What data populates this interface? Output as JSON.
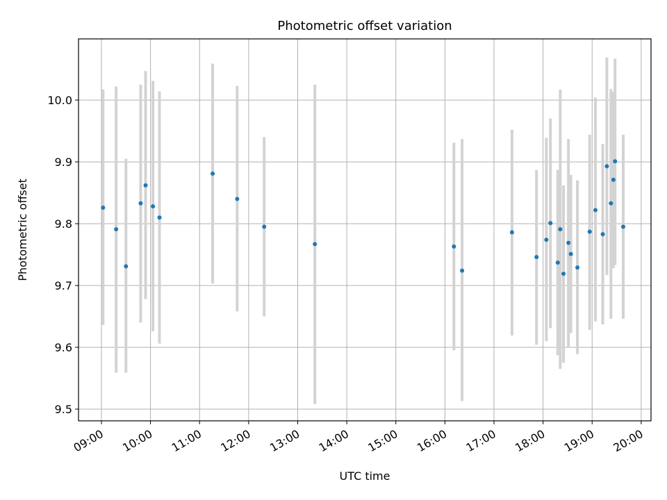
{
  "chart_data": {
    "type": "scatter",
    "title": "Photometric offset variation",
    "xlabel": "UTC time",
    "ylabel": "Photometric offset",
    "xlim": [
      "08:32",
      "20:12"
    ],
    "ylim": [
      9.481,
      10.099
    ],
    "xticks": [
      "09:00",
      "10:00",
      "11:00",
      "12:00",
      "13:00",
      "14:00",
      "15:00",
      "16:00",
      "17:00",
      "18:00",
      "19:00",
      "20:00"
    ],
    "yticks": [
      9.5,
      9.6,
      9.7,
      9.8,
      9.9,
      10.0
    ],
    "grid": true,
    "colors": {
      "points": "#1f77b4",
      "errorbars": "#d3d3d3",
      "grid": "#b0b0b0"
    },
    "series": [
      {
        "points": [
          {
            "x": "09:02",
            "y": 9.826,
            "ylow": 9.636,
            "yhigh": 10.017
          },
          {
            "x": "09:18",
            "y": 9.791,
            "ylow": 9.559,
            "yhigh": 10.022
          },
          {
            "x": "09:30",
            "y": 9.731,
            "ylow": 9.559,
            "yhigh": 9.905
          },
          {
            "x": "09:48",
            "y": 9.833,
            "ylow": 9.64,
            "yhigh": 10.025
          },
          {
            "x": "09:54",
            "y": 9.862,
            "ylow": 9.678,
            "yhigh": 10.047
          },
          {
            "x": "10:03",
            "y": 9.828,
            "ylow": 9.626,
            "yhigh": 10.031
          },
          {
            "x": "10:11",
            "y": 9.81,
            "ylow": 9.606,
            "yhigh": 10.014
          },
          {
            "x": "11:16",
            "y": 9.881,
            "ylow": 9.703,
            "yhigh": 10.059
          },
          {
            "x": "11:46",
            "y": 9.84,
            "ylow": 9.658,
            "yhigh": 10.023
          },
          {
            "x": "12:19",
            "y": 9.795,
            "ylow": 9.65,
            "yhigh": 9.94
          },
          {
            "x": "13:21",
            "y": 9.767,
            "ylow": 9.508,
            "yhigh": 10.025
          },
          {
            "x": "16:11",
            "y": 9.763,
            "ylow": 9.595,
            "yhigh": 9.931
          },
          {
            "x": "16:21",
            "y": 9.724,
            "ylow": 9.513,
            "yhigh": 9.937
          },
          {
            "x": "17:22",
            "y": 9.786,
            "ylow": 9.619,
            "yhigh": 9.952
          },
          {
            "x": "17:52",
            "y": 9.746,
            "ylow": 9.604,
            "yhigh": 9.887
          },
          {
            "x": "18:04",
            "y": 9.774,
            "ylow": 9.61,
            "yhigh": 9.939
          },
          {
            "x": "18:09",
            "y": 9.801,
            "ylow": 9.631,
            "yhigh": 9.97
          },
          {
            "x": "18:18",
            "y": 9.737,
            "ylow": 9.587,
            "yhigh": 9.887
          },
          {
            "x": "18:21",
            "y": 9.791,
            "ylow": 9.565,
            "yhigh": 10.017
          },
          {
            "x": "18:25",
            "y": 9.719,
            "ylow": 9.575,
            "yhigh": 9.862
          },
          {
            "x": "18:31",
            "y": 9.769,
            "ylow": 9.6,
            "yhigh": 9.937
          },
          {
            "x": "18:34",
            "y": 9.751,
            "ylow": 9.623,
            "yhigh": 9.879
          },
          {
            "x": "18:42",
            "y": 9.729,
            "ylow": 9.589,
            "yhigh": 9.87
          },
          {
            "x": "18:57",
            "y": 9.787,
            "ylow": 9.628,
            "yhigh": 9.944
          },
          {
            "x": "19:04",
            "y": 9.822,
            "ylow": 9.642,
            "yhigh": 10.004
          },
          {
            "x": "19:13",
            "y": 9.783,
            "ylow": 9.637,
            "yhigh": 9.929
          },
          {
            "x": "19:18",
            "y": 9.893,
            "ylow": 9.717,
            "yhigh": 10.069
          },
          {
            "x": "19:23",
            "y": 9.833,
            "ylow": 9.646,
            "yhigh": 10.018
          },
          {
            "x": "19:26",
            "y": 9.871,
            "ylow": 9.728,
            "yhigh": 10.013
          },
          {
            "x": "19:28",
            "y": 9.901,
            "ylow": 9.733,
            "yhigh": 10.067
          },
          {
            "x": "19:38",
            "y": 9.795,
            "ylow": 9.646,
            "yhigh": 9.944
          }
        ]
      }
    ]
  }
}
